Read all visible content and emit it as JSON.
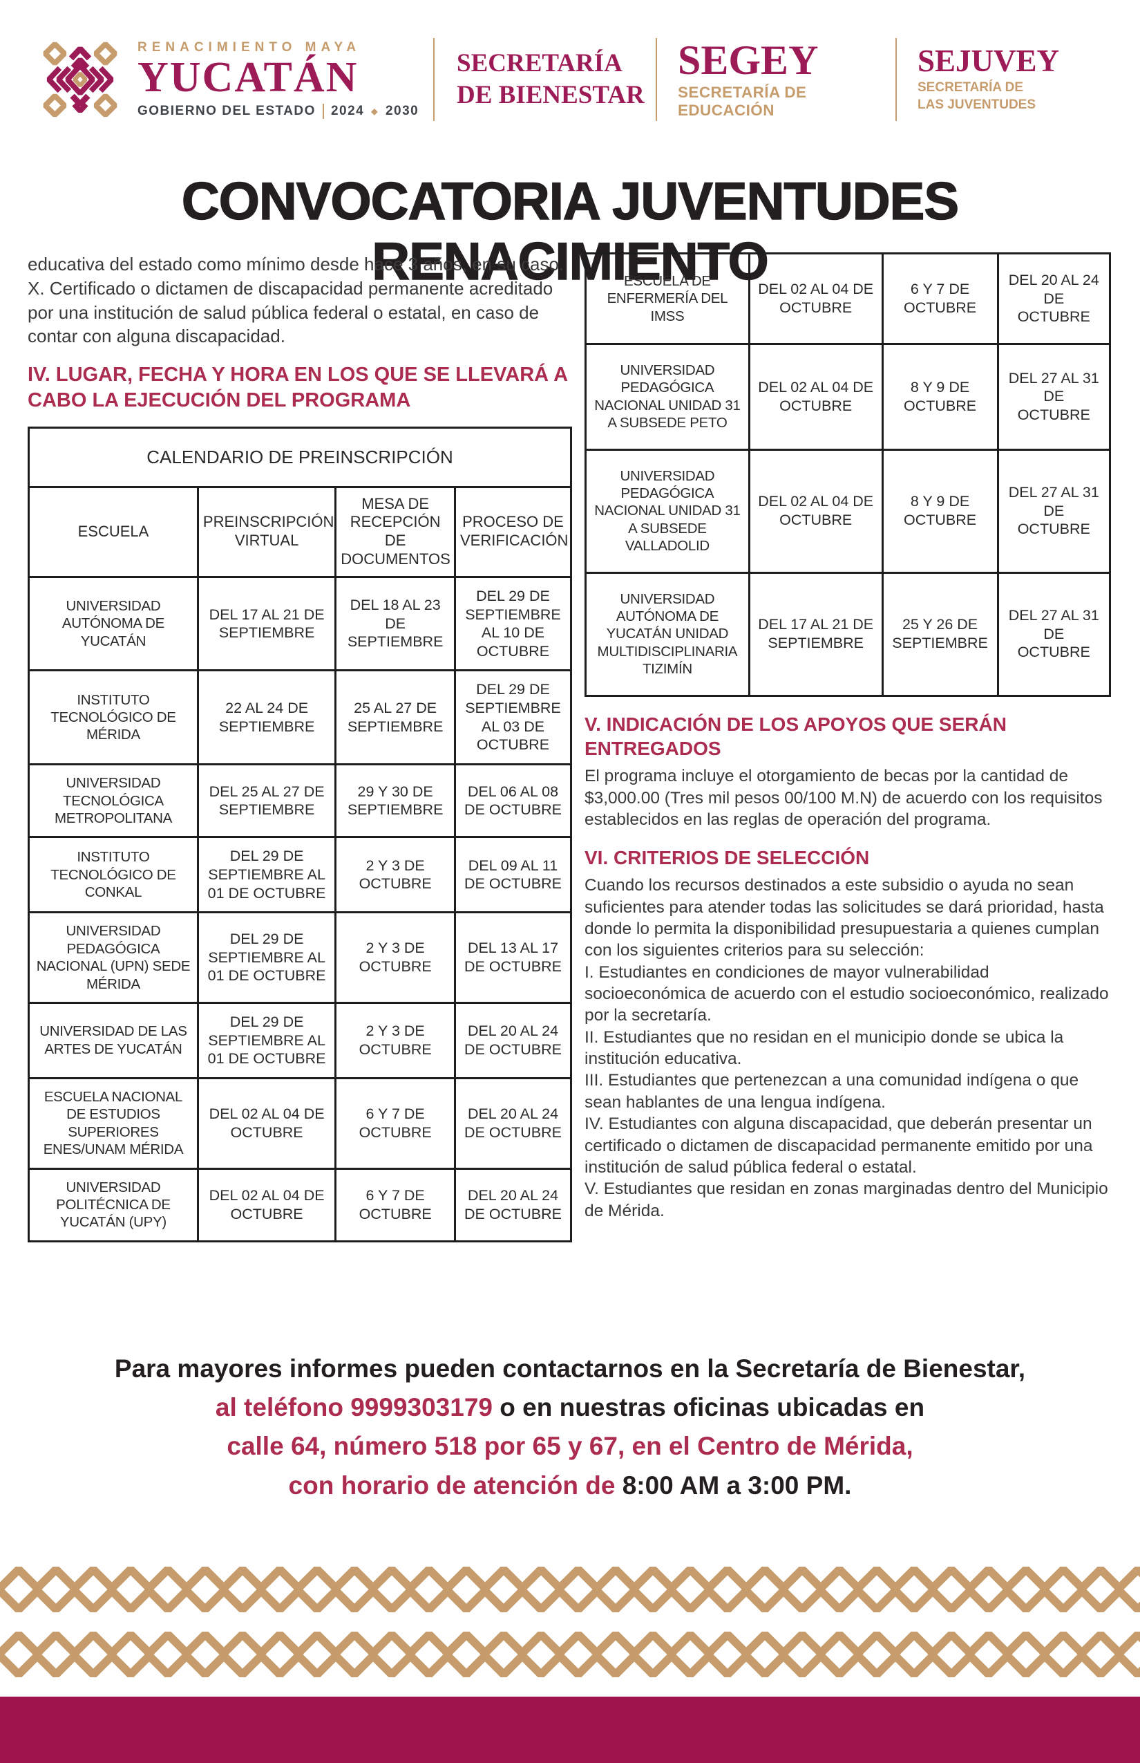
{
  "header": {
    "logo_yucatan": {
      "tagline": "RENACIMIENTO MAYA",
      "name": "YUCATÁN",
      "subtitle": "GOBIERNO DEL ESTADO",
      "period_start": "2024",
      "period_end": "2030"
    },
    "logo_bienestar": {
      "line1": "SECRETARÍA",
      "line2": "DE BIENESTAR"
    },
    "logo_segey": {
      "name": "SEGEY",
      "subtitle": "SECRETARÍA DE EDUCACIÓN"
    },
    "logo_sejuvey": {
      "name": "SEJUVEY",
      "subtitle1": "SECRETARÍA DE",
      "subtitle2": "LAS JUVENTUDES"
    }
  },
  "title": "CONVOCATORIA JUVENTUDES RENACIMIENTO",
  "left": {
    "intro_line1": "educativa del estado como mínimo desde hace 3 años, en su caso.",
    "intro_line2": "X. Certificado o dictamen de discapacidad permanente acreditado por una institución de salud pública federal o estatal, en caso de contar con alguna discapacidad.",
    "section4_heading": "IV. LUGAR, FECHA Y HORA EN LOS QUE SE LLEVARÁ A CABO LA EJECUCIÓN DEL PROGRAMA",
    "table": {
      "title": "CALENDARIO DE PREINSCRIPCIÓN",
      "headers": [
        "ESCUELA",
        "PREINSCRIPCIÓN VIRTUAL",
        "MESA DE RECEPCIÓN DE DOCUMENTOS",
        "PROCESO DE VERIFICACIÓN"
      ],
      "rows": [
        [
          "UNIVERSIDAD AUTÓNOMA DE YUCATÁN",
          "DEL 17 AL 21 DE SEPTIEMBRE",
          "DEL 18 AL 23 DE SEPTIEMBRE",
          "DEL 29 DE SEPTIEMBRE AL 10 DE OCTUBRE"
        ],
        [
          "INSTITUTO TECNOLÓGICO DE MÉRIDA",
          "22 AL 24 DE SEPTIEMBRE",
          "25 AL 27 DE SEPTIEMBRE",
          "DEL 29 DE SEPTIEMBRE AL 03 DE OCTUBRE"
        ],
        [
          "UNIVERSIDAD TECNOLÓGICA METROPOLITANA",
          "DEL 25 AL 27 DE SEPTIEMBRE",
          "29 Y 30 DE SEPTIEMBRE",
          "DEL 06 AL 08 DE OCTUBRE"
        ],
        [
          "INSTITUTO TECNOLÓGICO DE CONKAL",
          "DEL 29 DE SEPTIEMBRE AL 01 DE OCTUBRE",
          "2 Y 3 DE OCTUBRE",
          "DEL 09 AL 11 DE OCTUBRE"
        ],
        [
          "UNIVERSIDAD PEDAGÓGICA NACIONAL (UPN) SEDE MÉRIDA",
          "DEL 29 DE SEPTIEMBRE AL 01 DE OCTUBRE",
          "2 Y 3 DE OCTUBRE",
          "DEL 13 AL 17 DE OCTUBRE"
        ],
        [
          "UNIVERSIDAD DE LAS ARTES DE YUCATÁN",
          "DEL 29 DE SEPTIEMBRE AL 01 DE OCTUBRE",
          "2 Y 3 DE OCTUBRE",
          "DEL 20 AL 24 DE OCTUBRE"
        ],
        [
          "ESCUELA NACIONAL DE ESTUDIOS SUPERIORES ENES/UNAM MÉRIDA",
          "DEL 02 AL 04 DE OCTUBRE",
          "6 Y 7 DE OCTUBRE",
          "DEL 20 AL 24 DE OCTUBRE"
        ],
        [
          "UNIVERSIDAD POLITÉCNICA DE YUCATÁN (UPY)",
          "DEL 02 AL 04 DE OCTUBRE",
          "6 Y 7 DE OCTUBRE",
          "DEL 20 AL 24 DE OCTUBRE"
        ]
      ]
    }
  },
  "right": {
    "table_rows": [
      [
        "ESCUELA DE ENFERMERÍA DEL IMSS",
        "DEL 02 AL 04 DE OCTUBRE",
        "6 Y 7 DE OCTUBRE",
        "DEL 20 AL 24 DE OCTUBRE"
      ],
      [
        "UNIVERSIDAD PEDAGÓGICA NACIONAL UNIDAD 31 A SUBSEDE PETO",
        "DEL 02 AL 04 DE OCTUBRE",
        "8 Y 9 DE OCTUBRE",
        "DEL 27 AL 31 DE OCTUBRE"
      ],
      [
        "UNIVERSIDAD PEDAGÓGICA NACIONAL UNIDAD 31 A SUBSEDE VALLADOLID",
        "DEL 02 AL 04 DE OCTUBRE",
        "8 Y 9 DE OCTUBRE",
        "DEL 27 AL 31 DE OCTUBRE"
      ],
      [
        "UNIVERSIDAD AUTÓNOMA DE YUCATÁN UNIDAD MULTIDISCIPLINARIA TIZIMÍN",
        "DEL 17 AL 21 DE SEPTIEMBRE",
        "25 Y 26 DE SEPTIEMBRE",
        "DEL 27 AL 31 DE OCTUBRE"
      ]
    ],
    "section5_heading": "V. INDICACIÓN DE LOS APOYOS QUE SERÁN ENTREGADOS",
    "section5_body": "El programa incluye el otorgamiento de becas por la cantidad de $3,000.00 (Tres mil pesos 00/100 M.N) de acuerdo con los requisitos establecidos en las reglas de operación del programa.",
    "section6_heading": "VI. CRITERIOS DE SELECCIÓN",
    "section6_intro": "Cuando los recursos destinados a este subsidio o ayuda no sean suficientes para atender todas las solicitudes se dará prioridad, hasta donde lo permita la disponibilidad presupuestaria a quienes cumplan con los siguientes criterios para su selección:",
    "criteria": [
      "I. Estudiantes en condiciones de mayor vulnerabilidad socioeconómica de acuerdo con el estudio socioeconómico, realizado por la secretaría.",
      "II. Estudiantes que no residan en el municipio donde se ubica la institución educativa.",
      "III. Estudiantes que pertenezcan a una comunidad indígena o que sean hablantes de una lengua indígena.",
      "IV. Estudiantes con alguna discapacidad, que deberán presentar un certificado o dictamen de discapacidad permanente emitido por una institución de salud pública federal o estatal.",
      "V. Estudiantes que residan en zonas marginadas dentro del Municipio de Mérida."
    ]
  },
  "contact": {
    "line1": "Para mayores informes pueden contactarnos en la Secretaría de Bienestar,",
    "line2_accent": "al teléfono 9999303179",
    "line2_rest": " o en nuestras oficinas ubicadas en",
    "line3": "calle 64, número 518 por 65 y 67, en el Centro de Mérida,",
    "line4_accent": "con horario de atención de ",
    "line4_rest": "8:00 AM a 3:00 PM."
  },
  "colors": {
    "brand_maroon": "#9C1B56",
    "heading_red": "#AC2C50",
    "gold": "#C69C6D",
    "footer_bar": "#9E144D",
    "title_black": "#231F20"
  }
}
